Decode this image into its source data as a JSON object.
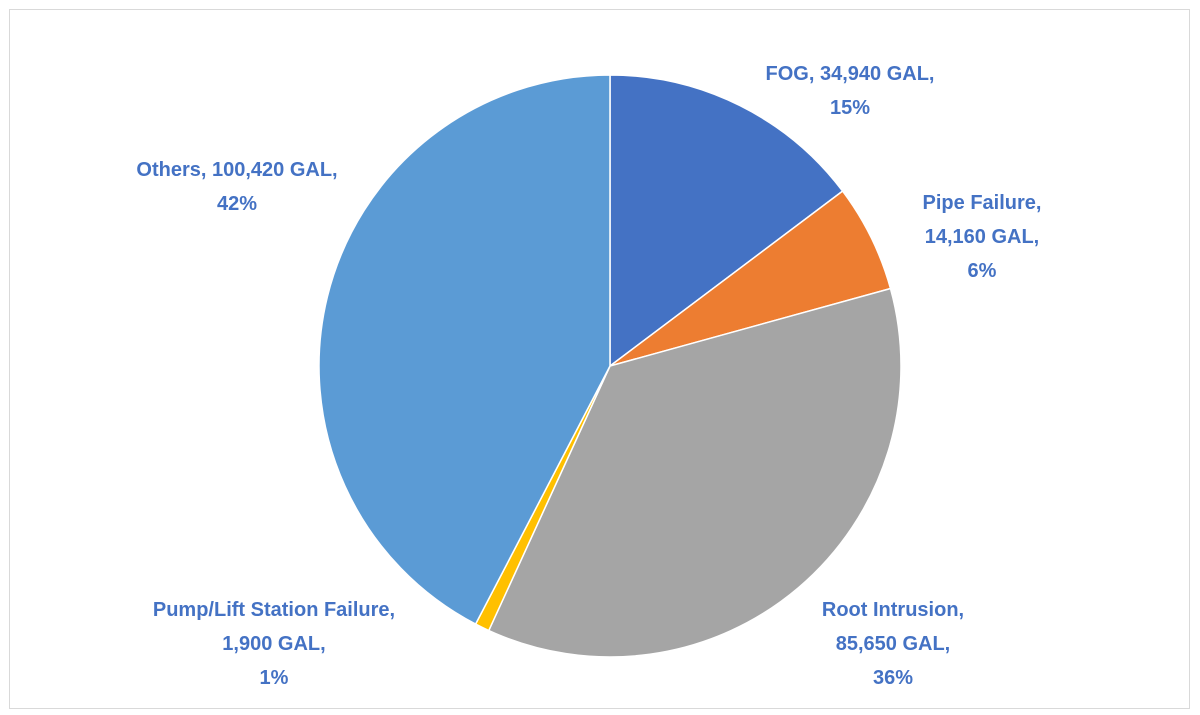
{
  "chart_data": {
    "type": "pie",
    "unit": "GAL",
    "slices": [
      {
        "name": "FOG",
        "value": 34940,
        "percent": 15,
        "color": "#4472c4",
        "label_lines": [
          "FOG,  34,940  GAL,",
          "15%"
        ]
      },
      {
        "name": "Pipe Failure",
        "value": 14160,
        "percent": 6,
        "color": "#ed7d31",
        "label_lines": [
          "Pipe Failure,",
          "14,160  GAL,",
          "6%"
        ]
      },
      {
        "name": "Root Intrusion",
        "value": 85650,
        "percent": 36,
        "color": "#a5a5a5",
        "label_lines": [
          "Root Intrusion,",
          "85,650  GAL,",
          "36%"
        ]
      },
      {
        "name": "Pump/Lift Station Failure",
        "value": 1900,
        "percent": 1,
        "color": "#ffc000",
        "label_lines": [
          "Pump/Lift Station Failure,",
          "1,900  GAL,",
          "1%"
        ]
      },
      {
        "name": "Others",
        "value": 100420,
        "percent": 42,
        "color": "#5b9bd5",
        "label_lines": [
          "Others,  100,420  GAL,",
          "42%"
        ]
      }
    ],
    "start_angle": "12 o'clock",
    "direction": "clockwise",
    "label_color": "#4472c4",
    "legend": "none"
  }
}
